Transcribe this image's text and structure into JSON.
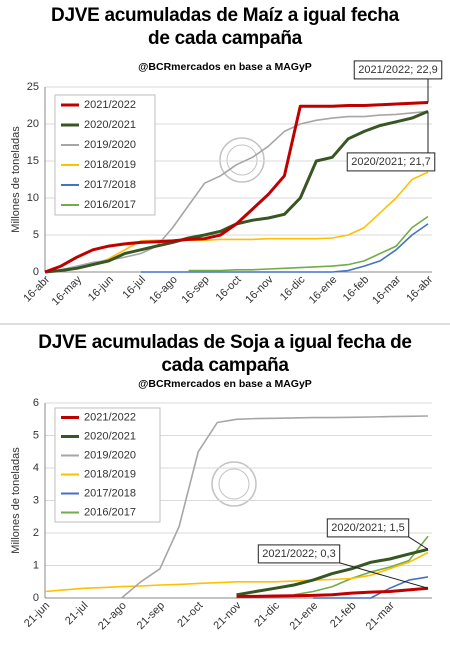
{
  "chart_data": [
    {
      "type": "line",
      "title": "DJVE acumuladas de Maíz a igual fecha de cada campaña",
      "subtitle": "@BCRmercados en base a MAGyP",
      "y_label": "Millones de toneladas",
      "categories": [
        "16-abr",
        null,
        "16-may",
        null,
        "16-jun",
        null,
        "16-jul",
        null,
        "16-ago",
        null,
        "16-sep",
        null,
        "16-oct",
        null,
        "16-nov",
        null,
        "16-dic",
        null,
        "16-ene",
        null,
        "16-feb",
        null,
        "16-mar",
        null,
        "16-abr"
      ],
      "series": [
        {
          "name": "2021/2022",
          "color": "#c00000",
          "values": [
            0,
            0.8,
            2,
            3,
            3.5,
            3.8,
            4.0,
            4.1,
            4.2,
            4.4,
            4.5,
            5.0,
            6.5,
            8.5,
            10.5,
            13,
            22.4,
            22.4,
            22.4,
            22.5,
            22.5,
            22.6,
            22.7,
            22.8,
            22.9
          ]
        },
        {
          "name": "2020/2021",
          "color": "#375623",
          "values": [
            0,
            0.2,
            0.5,
            1,
            1.5,
            2.5,
            3,
            3.5,
            4,
            4.6,
            5,
            5.5,
            6.5,
            7,
            7.3,
            7.8,
            10,
            15,
            15.5,
            18,
            19,
            19.8,
            20.3,
            20.8,
            21.7
          ]
        },
        {
          "name": "2019/2020",
          "color": "#a6a6a6",
          "values": [
            0,
            0.3,
            0.8,
            1.3,
            1.6,
            2,
            2.5,
            3.5,
            6,
            9,
            12,
            13,
            14.5,
            15.5,
            17,
            19,
            20,
            20.5,
            20.8,
            21,
            21,
            21.2,
            21.3,
            21.5,
            21.7
          ]
        },
        {
          "name": "2018/2019",
          "color": "#ffc000",
          "values": [
            0,
            0.1,
            0.5,
            1,
            1.8,
            3,
            4.2,
            4.3,
            4.3,
            4.3,
            4.3,
            4.4,
            4.4,
            4.4,
            4.5,
            4.5,
            4.5,
            4.5,
            4.6,
            5,
            6,
            8,
            10,
            12.5,
            13.5
          ]
        },
        {
          "name": "2017/2018",
          "color": "#4472c4",
          "values": [
            null,
            null,
            null,
            null,
            null,
            null,
            0,
            0,
            0,
            0,
            0,
            0,
            0,
            0,
            0,
            0,
            0,
            0,
            0,
            0.2,
            0.8,
            1.5,
            3,
            5,
            6.5
          ]
        },
        {
          "name": "2016/2017",
          "color": "#70ad47",
          "values": [
            null,
            null,
            null,
            null,
            null,
            null,
            null,
            null,
            null,
            0.2,
            0.2,
            0.2,
            0.3,
            0.3,
            0.4,
            0.5,
            0.6,
            0.7,
            0.8,
            1,
            1.5,
            2.5,
            3.5,
            6,
            7.5
          ]
        }
      ],
      "ylim": [
        0,
        25
      ],
      "yticks": [
        0,
        5,
        10,
        15,
        20,
        25
      ],
      "grid": true,
      "legend": "upper left",
      "annotations": [
        "2021/2022; 22,9",
        "2020/2021; 21,7"
      ]
    },
    {
      "type": "line",
      "title": "DJVE acumuladas de Soja a igual fecha de cada campaña",
      "subtitle": "@BCRmercados en base a MAGyP",
      "y_label": "Millones de toneladas",
      "categories": [
        "21-jun",
        null,
        "21-jul",
        null,
        "21-ago",
        null,
        "21-sep",
        null,
        "21-oct",
        null,
        "21-nov",
        null,
        "21-dic",
        null,
        "21-ene",
        null,
        "21-feb",
        null,
        "21-mar",
        null,
        null
      ],
      "series": [
        {
          "name": "2021/2022",
          "color": "#c00000",
          "values": [
            null,
            null,
            null,
            null,
            null,
            null,
            null,
            null,
            null,
            null,
            0.05,
            0.05,
            0.06,
            0.07,
            0.08,
            0.1,
            0.15,
            0.18,
            0.2,
            0.25,
            0.3
          ]
        },
        {
          "name": "2020/2021",
          "color": "#375623",
          "values": [
            null,
            null,
            null,
            null,
            null,
            null,
            null,
            null,
            null,
            null,
            0.1,
            0.2,
            0.3,
            0.4,
            0.55,
            0.75,
            0.9,
            1.1,
            1.2,
            1.35,
            1.5
          ]
        },
        {
          "name": "2019/2020",
          "color": "#a6a6a6",
          "values": [
            null,
            null,
            null,
            null,
            0,
            0.5,
            0.9,
            2.2,
            4.5,
            5.4,
            5.5,
            5.52,
            5.53,
            5.54,
            5.55,
            5.55,
            5.56,
            5.57,
            5.58,
            5.59,
            5.6
          ]
        },
        {
          "name": "2018/2019",
          "color": "#ffc000",
          "values": [
            0.2,
            0.25,
            0.3,
            0.32,
            0.35,
            0.37,
            0.4,
            0.42,
            0.45,
            0.47,
            0.5,
            0.5,
            0.5,
            0.52,
            0.55,
            0.57,
            0.6,
            0.7,
            0.9,
            1.1,
            1.4
          ]
        },
        {
          "name": "2017/2018",
          "color": "#4472c4",
          "values": [
            null,
            null,
            null,
            null,
            null,
            null,
            null,
            null,
            null,
            null,
            null,
            null,
            null,
            null,
            0,
            0,
            0,
            0,
            0.3,
            0.55,
            0.65
          ]
        },
        {
          "name": "2016/2017",
          "color": "#70ad47",
          "values": [
            null,
            null,
            null,
            null,
            null,
            null,
            null,
            null,
            null,
            null,
            null,
            null,
            null,
            0.1,
            0.2,
            0.35,
            0.6,
            0.8,
            0.95,
            1.15,
            1.9
          ]
        }
      ],
      "ylim": [
        0,
        6
      ],
      "yticks": [
        0,
        1,
        2,
        3,
        4,
        5,
        6
      ],
      "grid": true,
      "legend": "upper left",
      "annotations": [
        "2020/2021; 1,5",
        "2021/2022; 0,3"
      ]
    }
  ]
}
